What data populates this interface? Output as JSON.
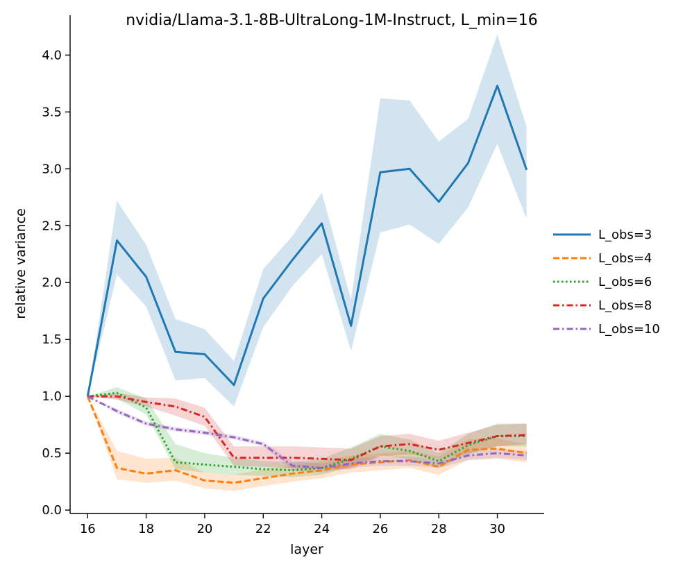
{
  "chart_data": {
    "type": "line",
    "title": "nvidia/Llama-3.1-8B-UltraLong-1M-Instruct,  L_min=16",
    "xlabel": "layer",
    "ylabel": "relative variance",
    "xlim": [
      15.4,
      31.6
    ],
    "ylim": [
      -0.03,
      4.35
    ],
    "xticks": [
      16,
      18,
      20,
      22,
      24,
      26,
      28,
      30
    ],
    "yticks": [
      0.0,
      0.5,
      1.0,
      1.5,
      2.0,
      2.5,
      3.0,
      3.5,
      4.0
    ],
    "ytick_labels": [
      "0.0",
      "0.5",
      "1.0",
      "1.5",
      "2.0",
      "2.5",
      "3.0",
      "3.5",
      "4.0"
    ],
    "legend_position": "right",
    "x": [
      16,
      17,
      18,
      19,
      20,
      21,
      22,
      23,
      24,
      25,
      26,
      27,
      28,
      29,
      30,
      31
    ],
    "series": [
      {
        "name": "L_obs=3",
        "color": "#1f77b4",
        "dash": "solid",
        "values": [
          1.0,
          2.37,
          2.05,
          1.39,
          1.37,
          1.1,
          1.86,
          2.2,
          2.52,
          1.62,
          2.97,
          3.0,
          2.71,
          3.05,
          3.73,
          2.99
        ],
        "lower": [
          1.0,
          2.07,
          1.79,
          1.14,
          1.16,
          0.91,
          1.61,
          1.97,
          2.25,
          1.4,
          2.44,
          2.51,
          2.34,
          2.66,
          3.22,
          2.56
        ],
        "upper": [
          1.0,
          2.72,
          2.33,
          1.68,
          1.59,
          1.31,
          2.12,
          2.41,
          2.79,
          1.85,
          3.62,
          3.6,
          3.24,
          3.44,
          4.18,
          3.37
        ]
      },
      {
        "name": "L_obs=4",
        "color": "#ff7f0e",
        "dash": "dashed",
        "values": [
          1.0,
          0.37,
          0.32,
          0.35,
          0.26,
          0.24,
          0.28,
          0.32,
          0.35,
          0.4,
          0.42,
          0.44,
          0.38,
          0.53,
          0.54,
          0.5
        ],
        "lower": [
          1.0,
          0.27,
          0.24,
          0.26,
          0.19,
          0.17,
          0.21,
          0.25,
          0.28,
          0.33,
          0.35,
          0.37,
          0.31,
          0.44,
          0.45,
          0.42
        ],
        "upper": [
          1.0,
          0.52,
          0.45,
          0.46,
          0.33,
          0.31,
          0.36,
          0.39,
          0.43,
          0.48,
          0.5,
          0.52,
          0.47,
          0.62,
          0.63,
          0.58
        ]
      },
      {
        "name": "L_obs=6",
        "color": "#2ca02c",
        "dash": "dotted",
        "values": [
          1.0,
          1.03,
          0.9,
          0.42,
          0.4,
          0.38,
          0.36,
          0.35,
          0.37,
          0.45,
          0.56,
          0.52,
          0.43,
          0.57,
          0.65,
          0.65
        ],
        "lower": [
          1.0,
          0.98,
          0.84,
          0.36,
          0.33,
          0.31,
          0.3,
          0.29,
          0.31,
          0.38,
          0.48,
          0.45,
          0.37,
          0.49,
          0.56,
          0.56
        ],
        "upper": [
          1.0,
          1.08,
          0.98,
          0.58,
          0.5,
          0.46,
          0.43,
          0.42,
          0.45,
          0.55,
          0.67,
          0.62,
          0.5,
          0.67,
          0.76,
          0.76
        ]
      },
      {
        "name": "L_obs=8",
        "color": "#d62728",
        "dash": "dashdot",
        "values": [
          1.0,
          1.0,
          0.95,
          0.91,
          0.82,
          0.46,
          0.46,
          0.46,
          0.45,
          0.44,
          0.56,
          0.58,
          0.53,
          0.59,
          0.65,
          0.66
        ],
        "lower": [
          1.0,
          0.97,
          0.91,
          0.83,
          0.74,
          0.39,
          0.38,
          0.37,
          0.36,
          0.36,
          0.47,
          0.49,
          0.45,
          0.5,
          0.56,
          0.58
        ],
        "upper": [
          1.0,
          1.03,
          0.99,
          0.98,
          0.9,
          0.56,
          0.56,
          0.56,
          0.55,
          0.54,
          0.65,
          0.67,
          0.61,
          0.68,
          0.75,
          0.76
        ]
      },
      {
        "name": "L_obs=10",
        "color": "#9467bd",
        "dash": "dashdot",
        "values": [
          1.0,
          0.87,
          0.76,
          0.71,
          0.68,
          0.64,
          0.58,
          0.39,
          0.37,
          0.41,
          0.43,
          0.43,
          0.41,
          0.48,
          0.5,
          0.48
        ],
        "lower": [
          1.0,
          0.85,
          0.74,
          0.69,
          0.66,
          0.62,
          0.56,
          0.35,
          0.33,
          0.37,
          0.39,
          0.39,
          0.37,
          0.44,
          0.46,
          0.44
        ],
        "upper": [
          1.0,
          0.89,
          0.78,
          0.73,
          0.7,
          0.66,
          0.6,
          0.43,
          0.41,
          0.45,
          0.47,
          0.47,
          0.45,
          0.52,
          0.54,
          0.52
        ]
      }
    ]
  }
}
